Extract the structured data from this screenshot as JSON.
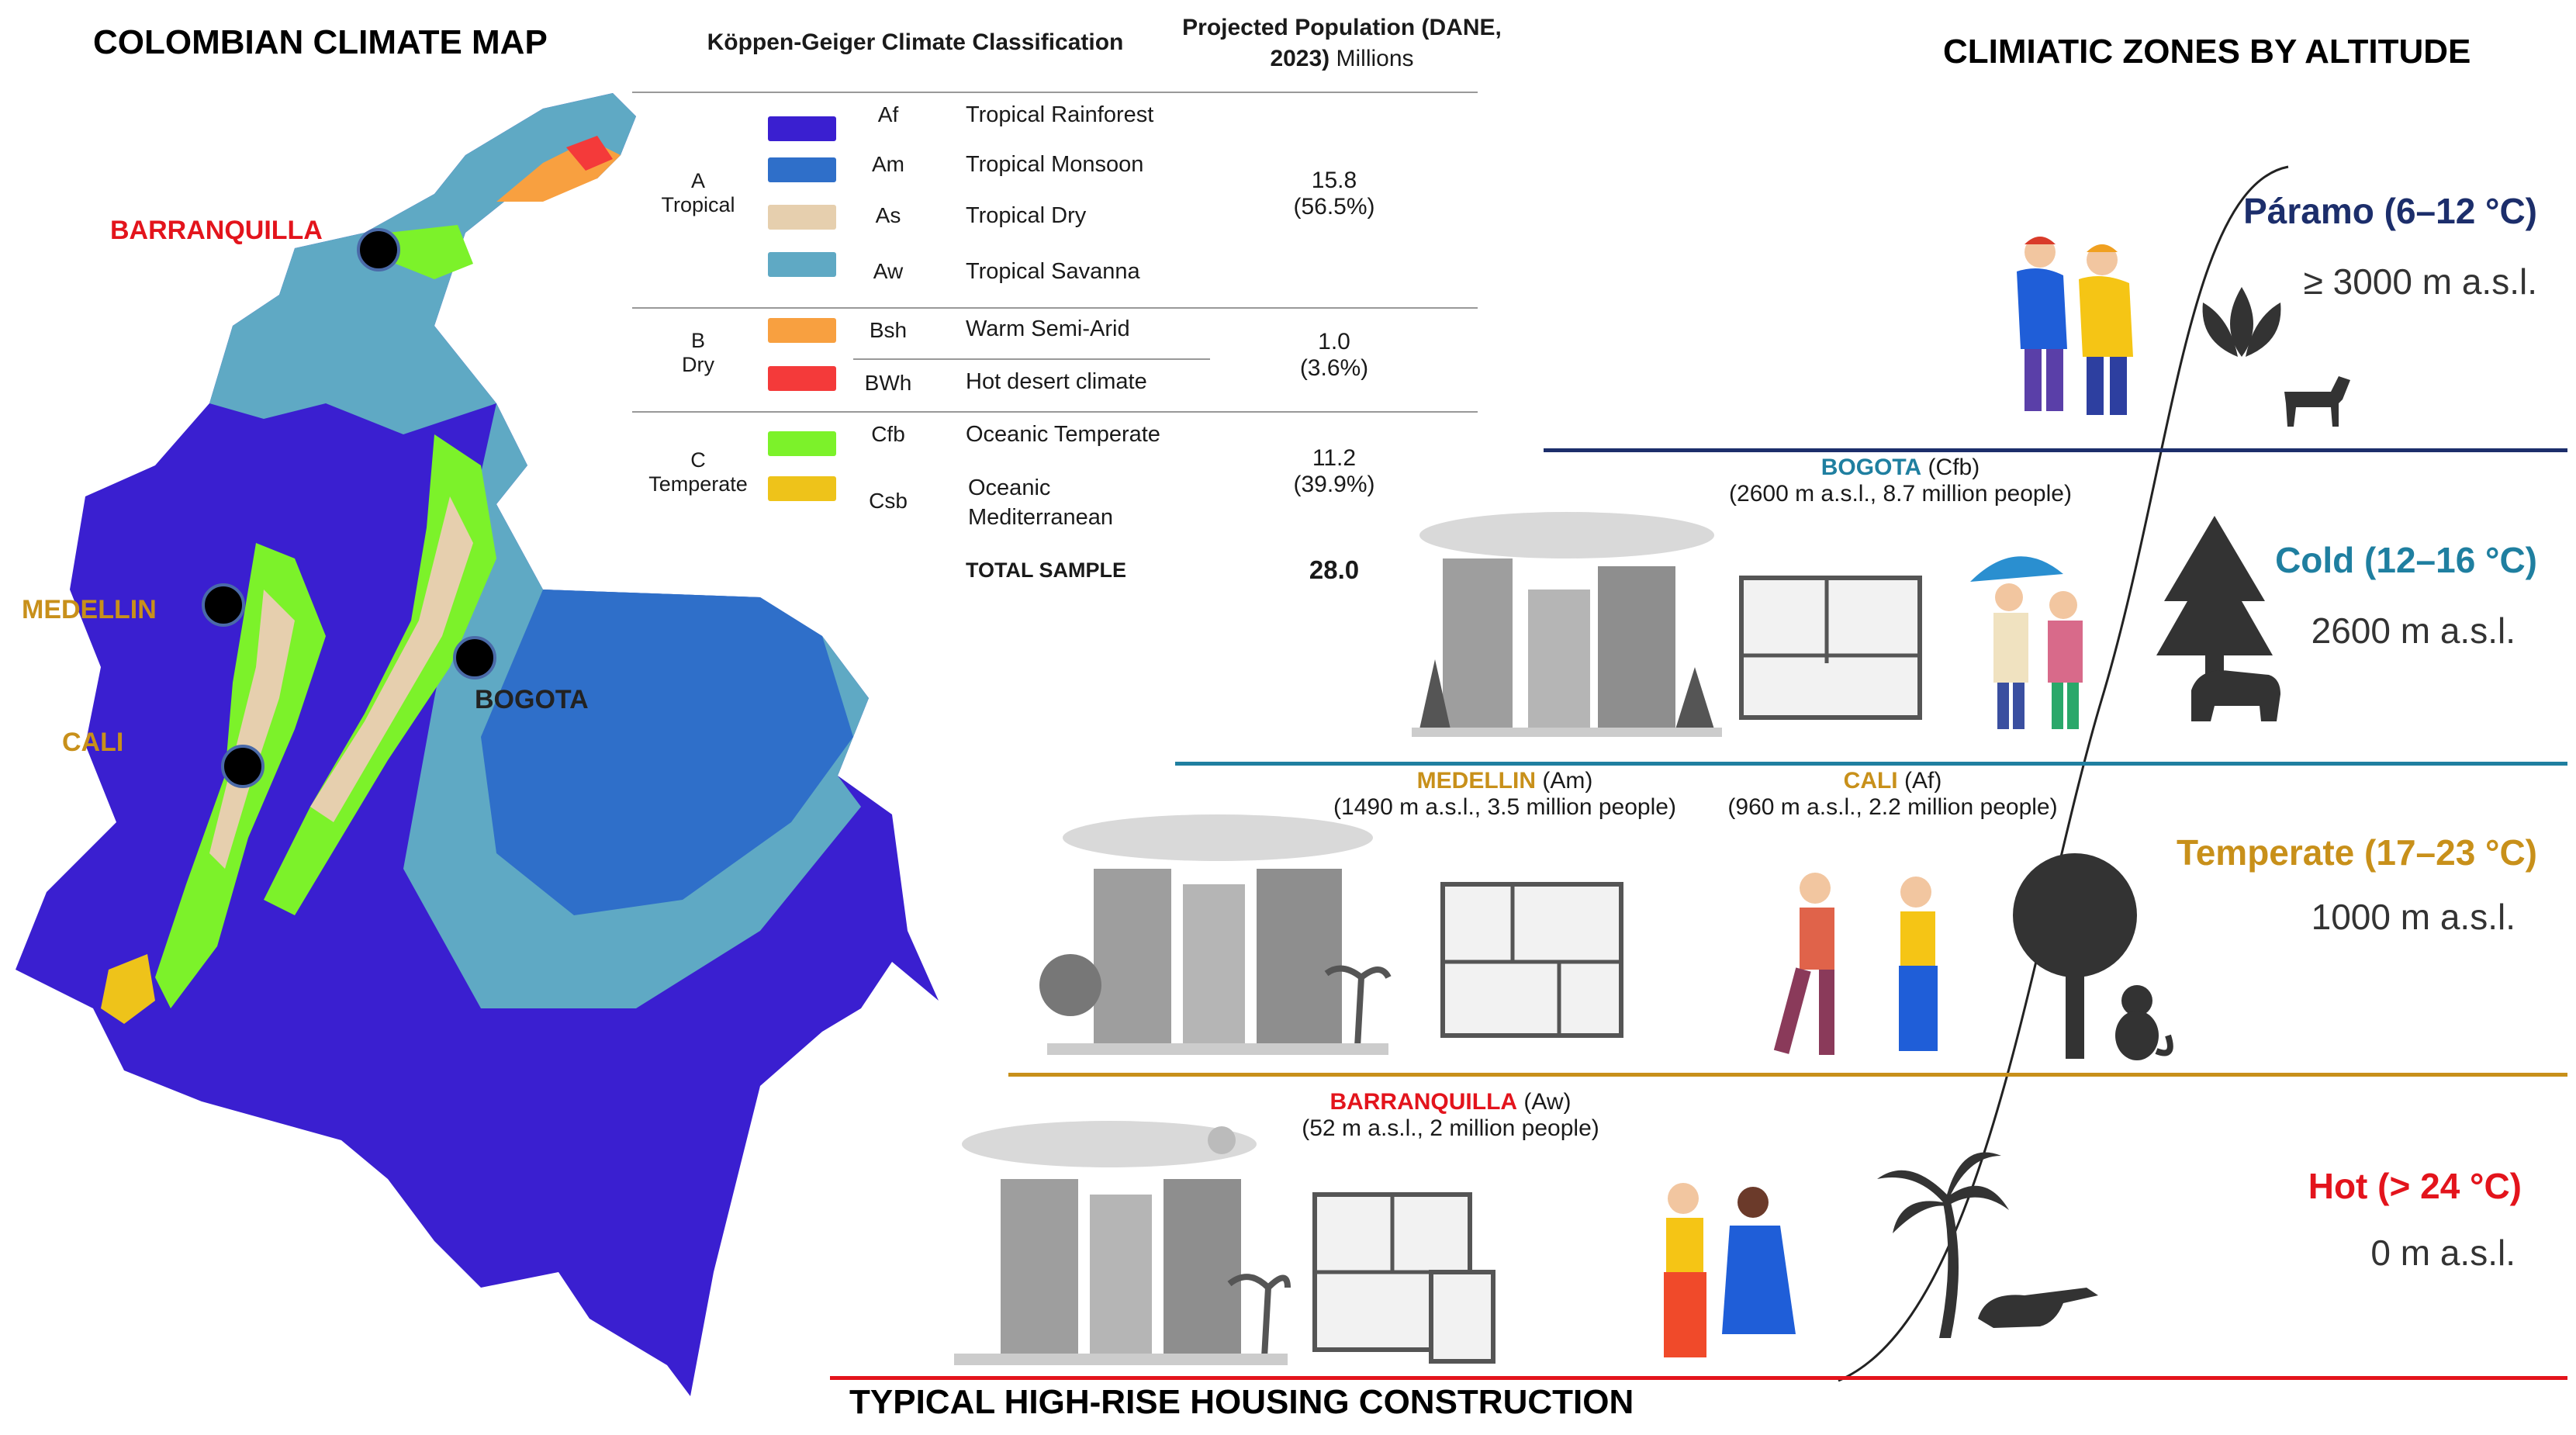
{
  "map": {
    "title": "COLOMBIAN CLIMATE MAP",
    "cities": {
      "barranquilla": "BARRANQUILLA",
      "medellin": "MEDELLIN",
      "cali": "CALI",
      "bogota": "BOGOTA"
    }
  },
  "table": {
    "header_class": "Köppen-Geiger Climate Classification",
    "header_pop_bold": "Projected Population (DANE, 2023)",
    "header_pop_unit": "Millions",
    "groups": [
      {
        "letter": "A",
        "name": "Tropical",
        "population": "15.8",
        "share": "(56.5%)"
      },
      {
        "letter": "B",
        "name": "Dry",
        "population": "1.0",
        "share": "(3.6%)"
      },
      {
        "letter": "C",
        "name": "Temperate",
        "population": "11.2",
        "share": "(39.9%)"
      }
    ],
    "rows": [
      {
        "code": "Af",
        "label": "Tropical Rainforest",
        "color": "#3a1fd0"
      },
      {
        "code": "Am",
        "label": "Tropical Monsoon",
        "color": "#2f6fc9"
      },
      {
        "code": "As",
        "label": "Tropical Dry",
        "color": "#e6cfae"
      },
      {
        "code": "Aw",
        "label": "Tropical Savanna",
        "color": "#5fa9c4"
      },
      {
        "code": "Bsh",
        "label": "Warm Semi-Arid",
        "color": "#f8a040"
      },
      {
        "code": "BWh",
        "label": "Hot desert climate",
        "color": "#f43a3a"
      },
      {
        "code": "Cfb",
        "label": "Oceanic Temperate",
        "color": "#7cf22a"
      },
      {
        "code": "Csb",
        "label": "Oceanic Mediterranean",
        "color": "#eec31a"
      }
    ],
    "total_label": "TOTAL SAMPLE",
    "total_value": "28.0"
  },
  "zones": {
    "title": "CLIMIATIC ZONES BY ALTITUDE",
    "items": [
      {
        "title": "Páramo (6–12 °C)",
        "altitude": "≥ 3000 m a.s.l.",
        "color": "#1c2e6b"
      },
      {
        "title": "Cold (12–16 °C)",
        "altitude": "2600 m a.s.l.",
        "color": "#1f7fa0"
      },
      {
        "title": "Temperate (17–23 °C)",
        "altitude": "1000 m a.s.l.",
        "color": "#c8901a"
      },
      {
        "title": "Hot (> 24 °C)",
        "altitude": "0 m a.s.l.",
        "color": "#e3141c"
      }
    ]
  },
  "cities_info": {
    "bogota": {
      "name": "BOGOTA",
      "climate": "(Cfb)",
      "detail": "(2600 m a.s.l., 8.7 million people)"
    },
    "medellin": {
      "name": "MEDELLIN",
      "climate": "(Am)",
      "detail": "(1490 m a.s.l., 3.5 million people)"
    },
    "cali": {
      "name": "CALI",
      "climate": "(Af)",
      "detail": "(960 m a.s.l., 2.2 million people)"
    },
    "barranquilla": {
      "name": "BARRANQUILLA",
      "climate": "(Aw)",
      "detail": "(52 m a.s.l., 2 million people)"
    }
  },
  "footer": "TYPICAL HIGH-RISE HOUSING CONSTRUCTION",
  "colors": {
    "red": "#e3141c",
    "gold": "#c8901a",
    "teal": "#1f7fa0",
    "navy": "#1c2e6b"
  },
  "icons": [
    "people-winter-icon",
    "frailejon-plant-icon",
    "goat-icon",
    "pine-tree-icon",
    "bear-icon",
    "broad-tree-icon",
    "monkey-icon",
    "palm-tree-icon",
    "crocodile-icon",
    "building-icon",
    "floor-plan-icon",
    "people-icon"
  ]
}
